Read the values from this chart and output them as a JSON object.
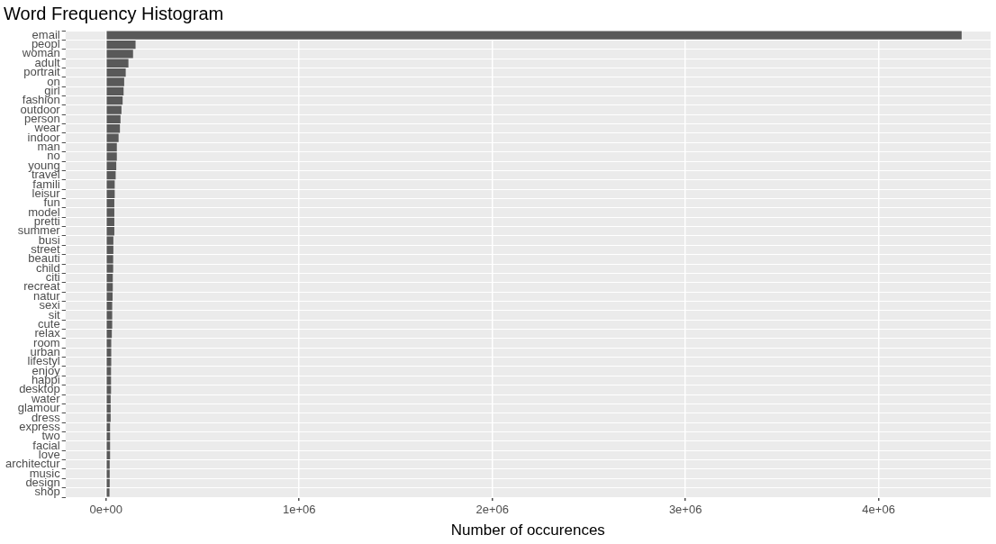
{
  "chart_data": {
    "type": "bar",
    "orientation": "horizontal",
    "title": "Word Frequency Histogram",
    "xlabel": "Number of occurences",
    "categories": [
      "email",
      "peopl",
      "woman",
      "adult",
      "portrait",
      "on",
      "girl",
      "fashion",
      "outdoor",
      "person",
      "wear",
      "indoor",
      "man",
      "no",
      "young",
      "travel",
      "famili",
      "leisur",
      "fun",
      "model",
      "pretti",
      "summer",
      "busi",
      "street",
      "beauti",
      "child",
      "citi",
      "recreat",
      "natur",
      "sexi",
      "sit",
      "cute",
      "relax",
      "room",
      "urban",
      "lifestyl",
      "enjoy",
      "happi",
      "desktop",
      "water",
      "glamour",
      "dress",
      "express",
      "two",
      "facial",
      "love",
      "architectur",
      "music",
      "design",
      "shop"
    ],
    "values": [
      4430000,
      153000,
      140000,
      116000,
      102000,
      94000,
      91000,
      86000,
      80000,
      75000,
      72000,
      65000,
      56000,
      56000,
      53000,
      50000,
      45000,
      45000,
      43000,
      43000,
      43000,
      43000,
      38000,
      38000,
      37000,
      37000,
      35000,
      35000,
      34000,
      32000,
      32000,
      32000,
      30000,
      27000,
      27000,
      27000,
      26000,
      26000,
      26000,
      24000,
      24000,
      24000,
      21000,
      21000,
      21000,
      21000,
      19000,
      19000,
      19000,
      18000
    ],
    "color": "#595959",
    "xlim": [
      -210000,
      4580000
    ],
    "xticks": [
      {
        "value": 0,
        "label": "0e+00"
      },
      {
        "value": 1000000,
        "label": "1e+06"
      },
      {
        "value": 2000000,
        "label": "2e+06"
      },
      {
        "value": 3000000,
        "label": "3e+06"
      },
      {
        "value": 4000000,
        "label": "4e+06"
      }
    ],
    "grid": true,
    "legend": false
  }
}
